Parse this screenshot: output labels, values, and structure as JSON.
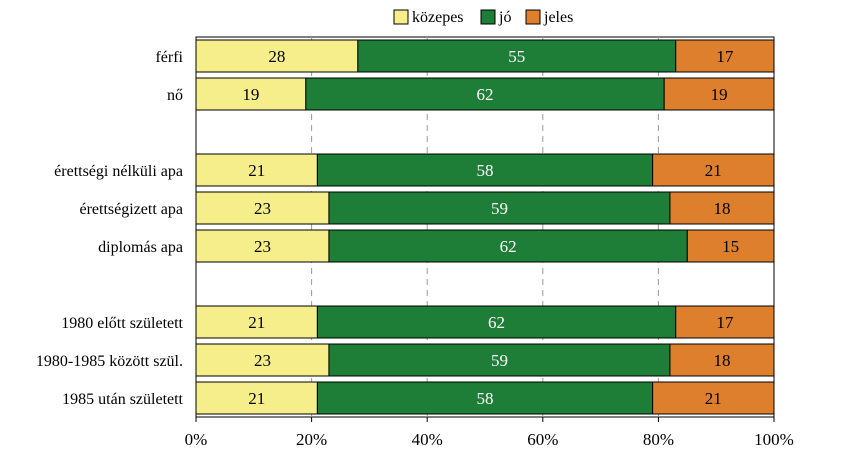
{
  "chart_data": {
    "type": "bar",
    "orientation": "horizontal",
    "stacked": true,
    "percent": true,
    "title": "",
    "xlabel": "",
    "ylabel": "",
    "xlim": [
      0,
      100
    ],
    "x_ticks": [
      "0%",
      "20%",
      "40%",
      "60%",
      "80%",
      "100%"
    ],
    "grid": "vertical dashed",
    "legend_position": "top",
    "categories": [
      "férfi",
      "nő",
      "",
      "érettségi nélküli apa",
      "érettségizett apa",
      "diplomás apa",
      "",
      "1980 előtt született",
      "1980-1985 között szül.",
      "1985 után született"
    ],
    "series": [
      {
        "name": "közepes",
        "color": "#f5ee8a",
        "label_color": "#000000",
        "values": [
          28,
          19,
          null,
          21,
          23,
          23,
          null,
          21,
          23,
          21
        ]
      },
      {
        "name": "jó",
        "color": "#1e7d36",
        "label_color": "#ffffff",
        "values": [
          55,
          62,
          null,
          58,
          59,
          62,
          null,
          62,
          59,
          58
        ]
      },
      {
        "name": "jeles",
        "color": "#dd7f2c",
        "label_color": "#000000",
        "values": [
          17,
          19,
          null,
          21,
          18,
          15,
          null,
          17,
          18,
          21
        ]
      }
    ]
  }
}
